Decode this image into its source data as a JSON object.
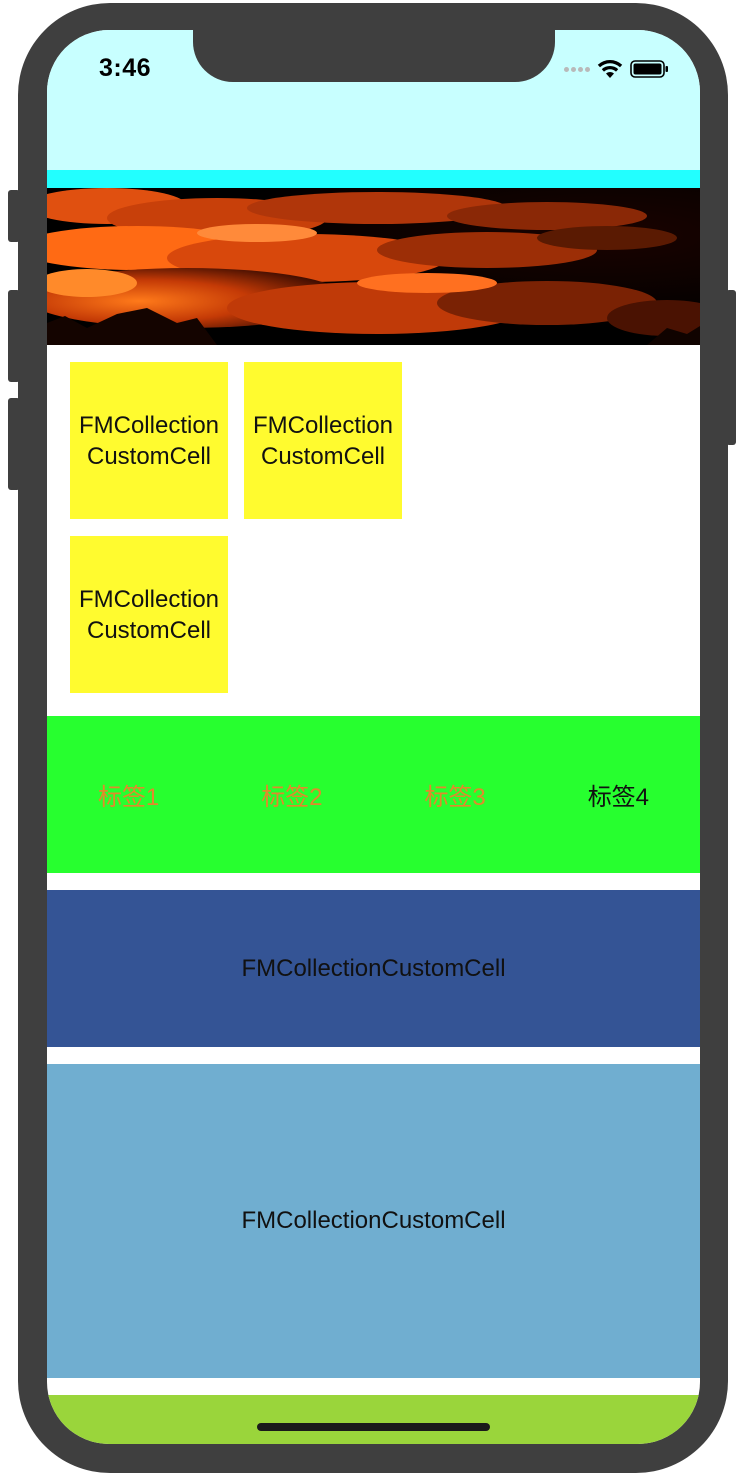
{
  "status_bar": {
    "time": "3:46",
    "wifi_icon": "wifi-icon",
    "battery_icon": "battery-icon",
    "signal_icon": "signal-dots-icon"
  },
  "colors": {
    "nav_background": "#c8ffff",
    "header_strip": "#22ffff",
    "grid_cell": "#fffb2f",
    "tabs_background": "#27ff2f",
    "tab_unselected_text": "#e08a2c",
    "tab_selected_text": "#111111",
    "row_dark": "#345495",
    "row_light": "#70aed0",
    "footer_green": "#9ad53b"
  },
  "banner": {
    "image": "sunset-clouds-image"
  },
  "grid": {
    "cells": [
      {
        "label": "FMCollectionCustomCell"
      },
      {
        "label": "FMCollectionCustomCell"
      },
      {
        "label": "FMCollectionCustomCell"
      }
    ]
  },
  "tabs": {
    "items": [
      {
        "label": "标签1"
      },
      {
        "label": "标签2"
      },
      {
        "label": "标签3"
      },
      {
        "label": "标签4"
      }
    ],
    "selected_index": 3
  },
  "rows": {
    "items": [
      {
        "label": "FMCollectionCustomCell"
      },
      {
        "label": "FMCollectionCustomCell"
      }
    ]
  }
}
